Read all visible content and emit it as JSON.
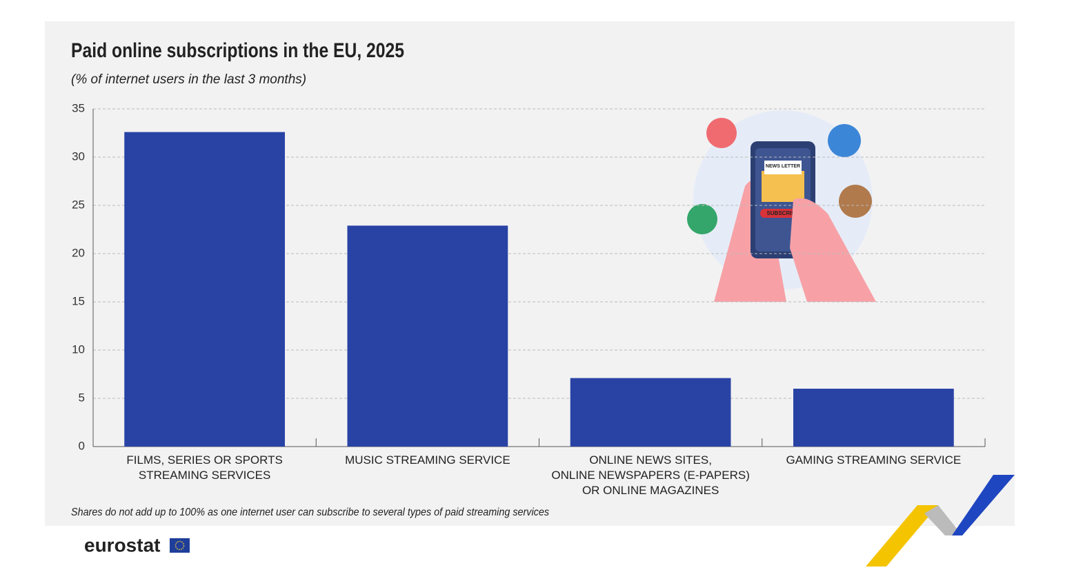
{
  "chart_data": {
    "type": "bar",
    "title": "Paid online subscriptions in the EU, 2025",
    "subtitle": "(% of internet users in the last 3 months)",
    "categories": [
      "FILMS, SERIES OR SPORTS\nSTREAMING SERVICES",
      "MUSIC STREAMING SERVICE",
      "ONLINE NEWS SITES,\nONLINE NEWSPAPERS (E-PAPERS)\nOR ONLINE MAGAZINES",
      "GAMING STREAMING SERVICE"
    ],
    "values": [
      32.6,
      22.9,
      7.1,
      6.0
    ],
    "color": "#2943a5",
    "ylim": [
      0,
      35
    ],
    "yticks": [
      0,
      5,
      10,
      15,
      20,
      25,
      30,
      35
    ],
    "grid": true,
    "note": "Shares do not add up to 100% as one internet user can subscribe to several types of paid streaming services"
  },
  "illustration": {
    "newsletter": "NEWS LETTER",
    "button": "SUBSCRIBE"
  },
  "logo": "eurostat"
}
